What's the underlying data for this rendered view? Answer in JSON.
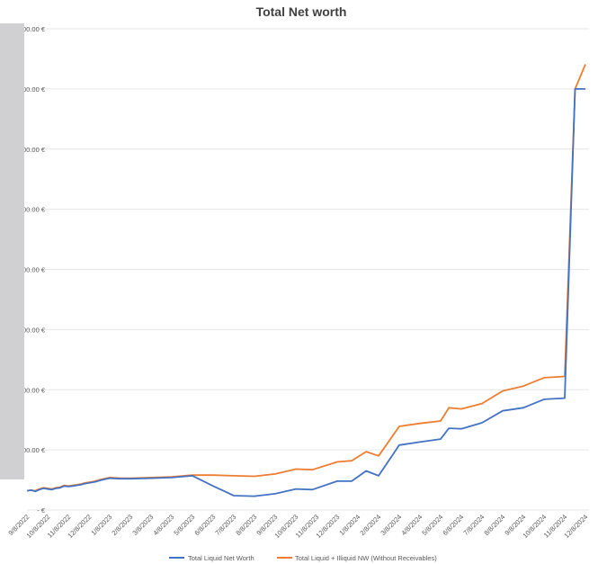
{
  "chart_data": {
    "type": "line",
    "title": "Total Net worth",
    "y_tick_labels": [
      "-  €",
      "00.00 €",
      "00.00 €",
      "00.00 €",
      "00.00 €",
      "00.00 €",
      "00.00 €",
      "00.00 €",
      "00.00 €"
    ],
    "ylim": [
      0,
      8
    ],
    "grid": true,
    "legend_position": "bottom",
    "colors": {
      "series1": "#4472C4",
      "series2": "#ED7D31",
      "redaction": "#d0d0d2"
    },
    "x_tick_labels": [
      "9/8/2022",
      "10/8/2022",
      "11/8/2022",
      "12/8/2022",
      "1/8/2023",
      "2/8/2023",
      "3/8/2023",
      "4/8/2023",
      "5/8/2023",
      "6/8/2023",
      "7/8/2023",
      "8/8/2023",
      "9/8/2023",
      "10/8/2023",
      "11/8/2023",
      "12/8/2023",
      "1/8/2024",
      "2/8/2024",
      "3/8/2024",
      "4/8/2024",
      "5/8/2024",
      "6/8/2024",
      "7/8/2024",
      "8/8/2024",
      "9/8/2024",
      "10/8/2024",
      "11/8/2024",
      "12/8/2024"
    ],
    "x": [
      0,
      0.2,
      0.4,
      0.6,
      0.8,
      1.0,
      1.2,
      1.4,
      1.6,
      1.8,
      2.0,
      2.2,
      2.4,
      2.6,
      2.8,
      3.0,
      3.3,
      3.6,
      4.0,
      4.5,
      5.0,
      6.0,
      7.0,
      8.0,
      9.0,
      10.0,
      11.0,
      12.0,
      13.0,
      13.8,
      15.0,
      15.7,
      16.4,
      17.0,
      18.0,
      19.0,
      20.0,
      20.4,
      21.0,
      22.0,
      23.0,
      24.0,
      25.0,
      26.0,
      26.5,
      27.0
    ],
    "series": [
      {
        "name": "Total Liquid Net Worth",
        "values": [
          0.32,
          0.33,
          0.31,
          0.34,
          0.36,
          0.35,
          0.34,
          0.36,
          0.37,
          0.4,
          0.39,
          0.4,
          0.41,
          0.42,
          0.44,
          0.45,
          0.47,
          0.5,
          0.53,
          0.52,
          0.52,
          0.53,
          0.54,
          0.57,
          0.4,
          0.24,
          0.23,
          0.27,
          0.35,
          0.34,
          0.48,
          0.48,
          0.65,
          0.57,
          1.08,
          1.13,
          1.18,
          1.36,
          1.35,
          1.45,
          1.65,
          1.7,
          1.84,
          1.86,
          7.0,
          7.0
        ]
      },
      {
        "name": "Total Liquid + Illiquid NW (Without Receivables)",
        "values": [
          0.32,
          0.33,
          0.32,
          0.35,
          0.37,
          0.36,
          0.35,
          0.37,
          0.38,
          0.41,
          0.4,
          0.41,
          0.42,
          0.43,
          0.45,
          0.46,
          0.48,
          0.51,
          0.54,
          0.53,
          0.53,
          0.54,
          0.55,
          0.58,
          0.58,
          0.57,
          0.56,
          0.6,
          0.68,
          0.67,
          0.8,
          0.82,
          0.97,
          0.9,
          1.39,
          1.44,
          1.48,
          1.7,
          1.68,
          1.77,
          1.98,
          2.06,
          2.2,
          2.22,
          7.0,
          7.41
        ]
      }
    ]
  }
}
